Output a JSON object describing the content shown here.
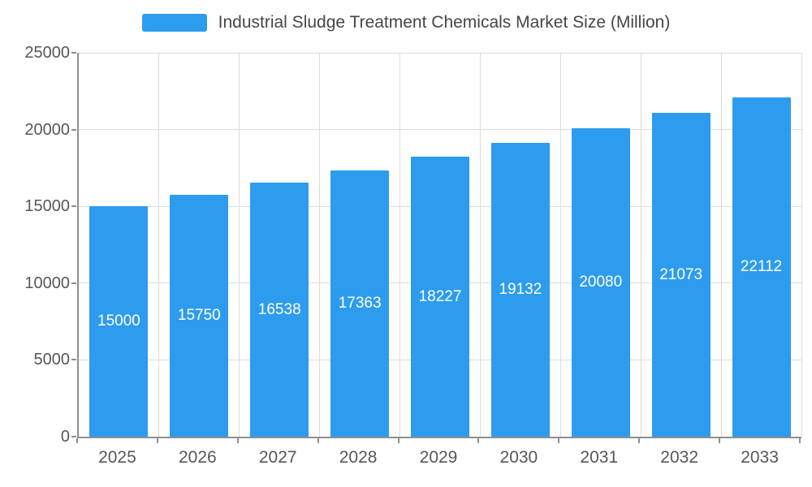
{
  "legend": {
    "label": "Industrial Sludge Treatment Chemicals Market Size (Million)"
  },
  "chart_data": {
    "type": "bar",
    "title": "Industrial Sludge Treatment Chemicals Market Size (Million)",
    "categories": [
      "2025",
      "2026",
      "2027",
      "2028",
      "2029",
      "2030",
      "2031",
      "2032",
      "2033"
    ],
    "values": [
      15000,
      15750,
      16538,
      17363,
      18227,
      19132,
      20080,
      21073,
      22112
    ],
    "xlabel": "",
    "ylabel": "",
    "ylim": [
      0,
      25000
    ],
    "yticks": [
      0,
      5000,
      10000,
      15000,
      20000,
      25000
    ],
    "grid": true,
    "legend_position": "top",
    "bar_color": "#2d9cee",
    "value_label_color": "#ffffff",
    "value_label_position": "middle-inside"
  }
}
